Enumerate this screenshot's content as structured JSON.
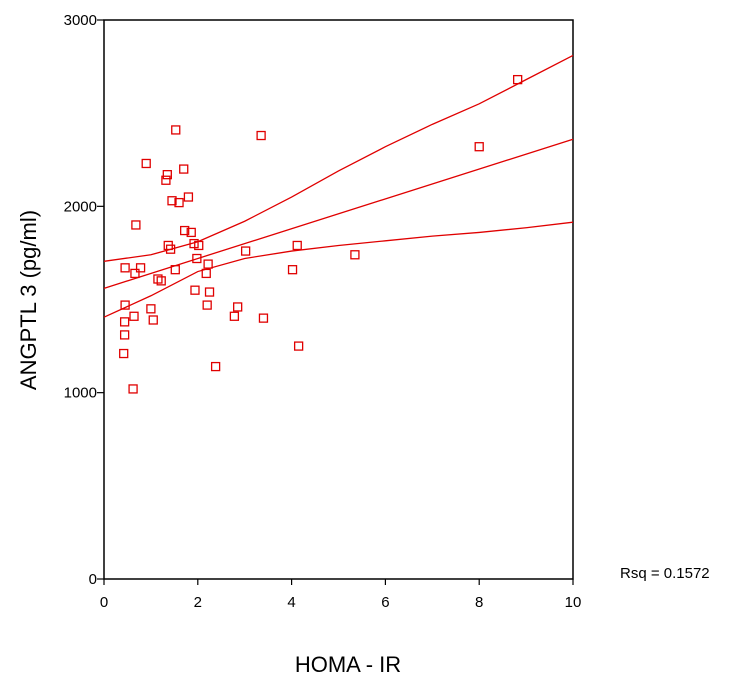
{
  "chart_data": {
    "type": "scatter",
    "xlabel": "HOMA - IR",
    "ylabel": "ANGPTL  3     (pg/ml)",
    "xlim": [
      0,
      10
    ],
    "ylim": [
      0,
      3000
    ],
    "xticks": [
      0,
      2,
      4,
      6,
      8,
      10
    ],
    "yticks": [
      0,
      1000,
      2000,
      3000
    ],
    "xtick_labels": [
      "0",
      "2",
      "4",
      "6",
      "8",
      "10"
    ],
    "ytick_labels": [
      "0",
      "1000",
      "2000",
      "3000"
    ],
    "annotation": "Rsq = 0.1572",
    "grid": false,
    "marker": "hollow-square",
    "color": "#e00000",
    "points": [
      {
        "x": 0.42,
        "y": 1210
      },
      {
        "x": 0.44,
        "y": 1310
      },
      {
        "x": 0.44,
        "y": 1380
      },
      {
        "x": 0.45,
        "y": 1470
      },
      {
        "x": 0.45,
        "y": 1670
      },
      {
        "x": 0.62,
        "y": 1020
      },
      {
        "x": 0.64,
        "y": 1410
      },
      {
        "x": 0.66,
        "y": 1640
      },
      {
        "x": 0.68,
        "y": 1900
      },
      {
        "x": 0.78,
        "y": 1670
      },
      {
        "x": 0.9,
        "y": 2230
      },
      {
        "x": 1.0,
        "y": 1450
      },
      {
        "x": 1.05,
        "y": 1390
      },
      {
        "x": 1.15,
        "y": 1610
      },
      {
        "x": 1.22,
        "y": 1600
      },
      {
        "x": 1.32,
        "y": 2140
      },
      {
        "x": 1.35,
        "y": 2170
      },
      {
        "x": 1.37,
        "y": 1790
      },
      {
        "x": 1.42,
        "y": 1770
      },
      {
        "x": 1.45,
        "y": 2030
      },
      {
        "x": 1.52,
        "y": 1660
      },
      {
        "x": 1.53,
        "y": 2410
      },
      {
        "x": 1.6,
        "y": 2020
      },
      {
        "x": 1.7,
        "y": 2200
      },
      {
        "x": 1.72,
        "y": 1870
      },
      {
        "x": 1.8,
        "y": 2050
      },
      {
        "x": 1.86,
        "y": 1860
      },
      {
        "x": 1.92,
        "y": 1800
      },
      {
        "x": 1.94,
        "y": 1550
      },
      {
        "x": 1.98,
        "y": 1720
      },
      {
        "x": 2.02,
        "y": 1790
      },
      {
        "x": 2.18,
        "y": 1640
      },
      {
        "x": 2.2,
        "y": 1470
      },
      {
        "x": 2.22,
        "y": 1690
      },
      {
        "x": 2.25,
        "y": 1540
      },
      {
        "x": 2.38,
        "y": 1140
      },
      {
        "x": 2.78,
        "y": 1410
      },
      {
        "x": 2.85,
        "y": 1460
      },
      {
        "x": 3.02,
        "y": 1760
      },
      {
        "x": 3.35,
        "y": 2380
      },
      {
        "x": 3.4,
        "y": 1400
      },
      {
        "x": 4.02,
        "y": 1660
      },
      {
        "x": 4.12,
        "y": 1790
      },
      {
        "x": 4.15,
        "y": 1250
      },
      {
        "x": 5.35,
        "y": 1740
      },
      {
        "x": 8.0,
        "y": 2320
      },
      {
        "x": 8.82,
        "y": 2680
      }
    ],
    "regression_line": {
      "x": [
        0,
        10
      ],
      "y": [
        1560,
        2360
      ]
    },
    "upper_confidence_band": {
      "x": [
        0,
        1,
        2,
        3,
        4,
        5,
        6,
        7,
        8,
        9,
        10
      ],
      "y": [
        1705,
        1740,
        1810,
        1920,
        2050,
        2190,
        2320,
        2440,
        2550,
        2680,
        2810
      ]
    },
    "lower_confidence_band": {
      "x": [
        0,
        1,
        2,
        3,
        4,
        5,
        6,
        7,
        8,
        9,
        10
      ],
      "y": [
        1405,
        1520,
        1650,
        1720,
        1760,
        1790,
        1815,
        1840,
        1860,
        1885,
        1915
      ]
    }
  }
}
